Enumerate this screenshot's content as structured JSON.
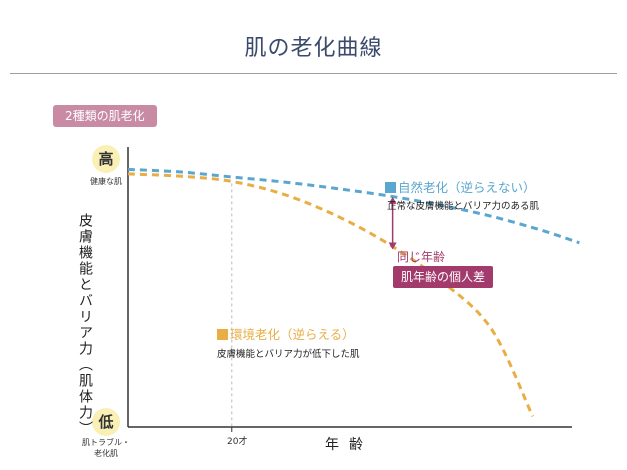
{
  "title": "肌の老化曲線",
  "badge": "2種類の肌老化",
  "y_axis": {
    "high_label": "高",
    "high_note": "健康な肌",
    "low_label": "低",
    "low_note_line1": "肌トラブル・",
    "low_note_line2": "老化肌",
    "label": "皮膚機能とバリア力（肌体力）"
  },
  "x_axis": {
    "label": "年齢",
    "tick_label": "20才",
    "tick_value": 20
  },
  "legend": {
    "natural_title": "自然老化（逆らえない）",
    "natural_desc": "正常な皮膚機能とバリア力のある肌",
    "env_title": "環境老化（逆らえる）",
    "env_desc": "皮膚機能とバリア力が低下した肌"
  },
  "callout": {
    "same_age": "同じ年齢",
    "diff_label": "肌年齢の個人差"
  },
  "colors": {
    "natural": "#5aa6cf",
    "environmental": "#e8ae45",
    "accent": "#a23a6b",
    "badge": "#c98ba4",
    "axis": "#333333"
  },
  "chart_data": {
    "type": "line",
    "title": "肌の老化曲線",
    "xlabel": "年齢",
    "ylabel": "皮膚機能とバリア力（肌体力）",
    "xlim": [
      0,
      90
    ],
    "ylim": [
      0,
      100
    ],
    "x_ticks": [
      20
    ],
    "series": [
      {
        "name": "自然老化（逆らえない）",
        "style": "dashed",
        "points": [
          [
            0,
            92
          ],
          [
            10,
            91.1
          ],
          [
            20,
            89.3
          ],
          [
            30,
            87.5
          ],
          [
            40,
            85.2
          ],
          [
            50,
            82.6
          ],
          [
            60,
            79.3
          ],
          [
            70,
            75.3
          ],
          [
            80,
            70.1
          ],
          [
            87,
            65.8
          ]
        ]
      },
      {
        "name": "環境老化（逆らえる）",
        "style": "dashed",
        "points": [
          [
            0,
            90.4
          ],
          [
            10,
            89.6
          ],
          [
            20,
            87.7
          ],
          [
            30,
            83.1
          ],
          [
            40,
            75.6
          ],
          [
            50,
            65.6
          ],
          [
            60,
            52.7
          ],
          [
            70,
            35.1
          ],
          [
            78,
            3.8
          ]
        ]
      }
    ],
    "annotations": [
      {
        "x": 51,
        "y_from": 82.2,
        "y_to": 63.4,
        "label": "肌年齢の個人差",
        "sub": "同じ年齢"
      }
    ]
  }
}
